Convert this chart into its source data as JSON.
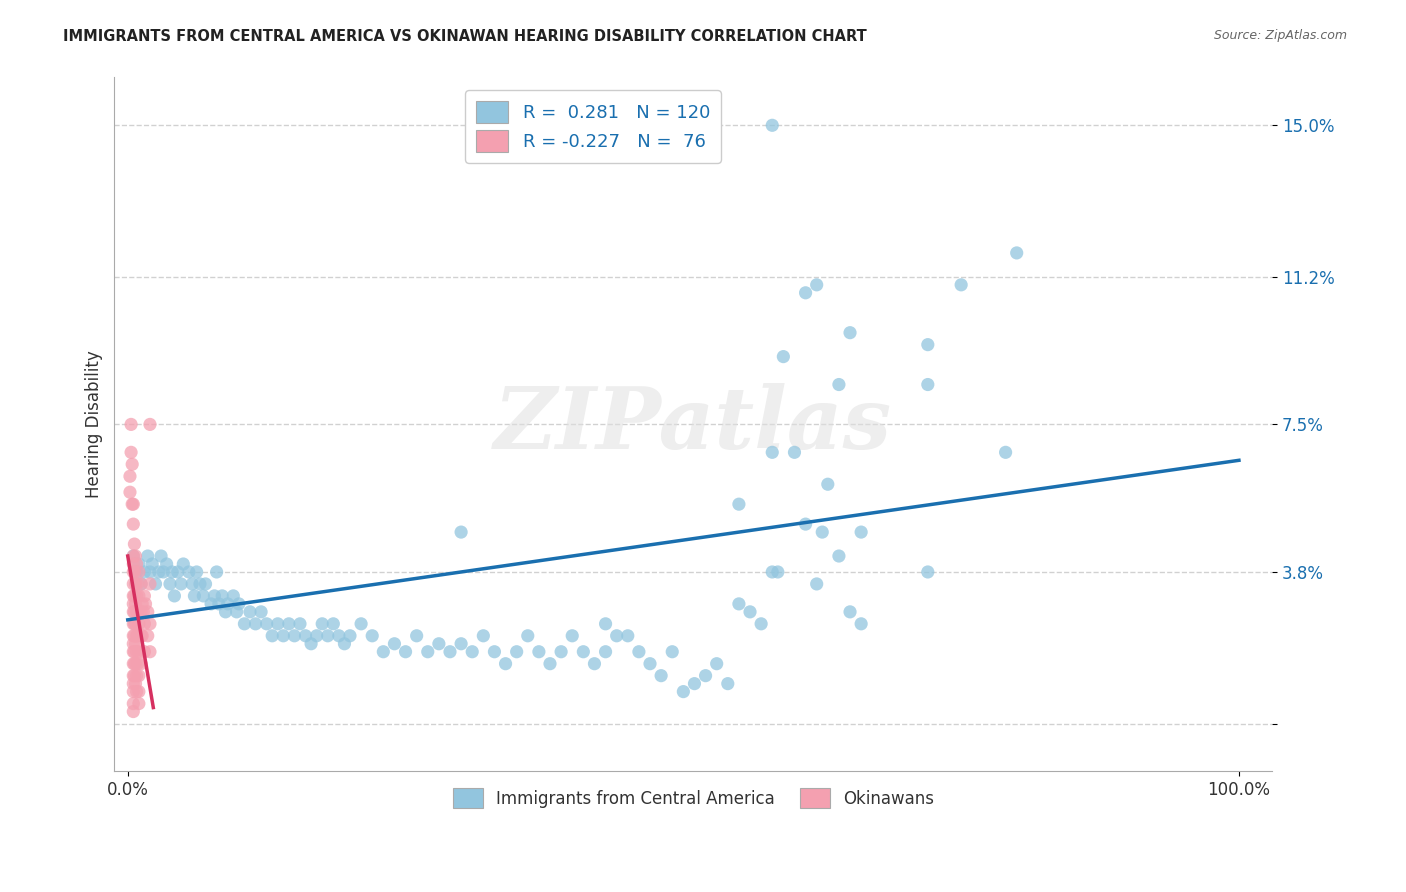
{
  "title": "IMMIGRANTS FROM CENTRAL AMERICA VS OKINAWAN HEARING DISABILITY CORRELATION CHART",
  "source": "Source: ZipAtlas.com",
  "ylabel": "Hearing Disability",
  "xlim_min": -0.012,
  "xlim_max": 1.03,
  "ylim_min": -0.012,
  "ylim_max": 0.162,
  "ytick_vals": [
    0.0,
    0.038,
    0.075,
    0.112,
    0.15
  ],
  "ytick_labels": [
    "",
    "3.8%",
    "7.5%",
    "11.2%",
    "15.0%"
  ],
  "xtick_vals": [
    0.0,
    1.0
  ],
  "xtick_labels": [
    "0.0%",
    "100.0%"
  ],
  "blue_R": "0.281",
  "blue_N": "120",
  "pink_R": "-0.227",
  "pink_N": "76",
  "blue_scatter_color": "#92c5de",
  "blue_line_color": "#1a6faf",
  "pink_scatter_color": "#f4a0b0",
  "pink_line_color": "#d63060",
  "legend_label_blue": "Immigrants from Central America",
  "legend_label_pink": "Okinawans",
  "watermark": "ZIPatlas",
  "background_color": "#ffffff",
  "blue_line": [
    0.0,
    1.0,
    0.026,
    0.066
  ],
  "pink_line": [
    0.0,
    0.023,
    0.042,
    0.004
  ],
  "blue_points_x": [
    0.005,
    0.008,
    0.01,
    0.012,
    0.015,
    0.018,
    0.02,
    0.022,
    0.025,
    0.028,
    0.03,
    0.032,
    0.035,
    0.038,
    0.04,
    0.042,
    0.045,
    0.048,
    0.05,
    0.055,
    0.058,
    0.06,
    0.062,
    0.065,
    0.068,
    0.07,
    0.075,
    0.078,
    0.08,
    0.082,
    0.085,
    0.088,
    0.09,
    0.095,
    0.098,
    0.1,
    0.105,
    0.11,
    0.115,
    0.12,
    0.125,
    0.13,
    0.135,
    0.14,
    0.145,
    0.15,
    0.155,
    0.16,
    0.165,
    0.17,
    0.175,
    0.18,
    0.185,
    0.19,
    0.195,
    0.2,
    0.21,
    0.22,
    0.23,
    0.24,
    0.25,
    0.26,
    0.27,
    0.28,
    0.29,
    0.3,
    0.31,
    0.32,
    0.33,
    0.34,
    0.35,
    0.36,
    0.37,
    0.38,
    0.39,
    0.4,
    0.41,
    0.42,
    0.43,
    0.44,
    0.45,
    0.46,
    0.47,
    0.48,
    0.49,
    0.5,
    0.51,
    0.52,
    0.53,
    0.54,
    0.55,
    0.56,
    0.57,
    0.58,
    0.585,
    0.6,
    0.61,
    0.62,
    0.625,
    0.63,
    0.64,
    0.65,
    0.66,
    0.58,
    0.55,
    0.3,
    0.62,
    0.66,
    0.72,
    0.75,
    0.58,
    0.72,
    0.8,
    0.65,
    0.59,
    0.64,
    0.61,
    0.43,
    0.72,
    0.79
  ],
  "blue_points_y": [
    0.042,
    0.038,
    0.04,
    0.035,
    0.038,
    0.042,
    0.038,
    0.04,
    0.035,
    0.038,
    0.042,
    0.038,
    0.04,
    0.035,
    0.038,
    0.032,
    0.038,
    0.035,
    0.04,
    0.038,
    0.035,
    0.032,
    0.038,
    0.035,
    0.032,
    0.035,
    0.03,
    0.032,
    0.038,
    0.03,
    0.032,
    0.028,
    0.03,
    0.032,
    0.028,
    0.03,
    0.025,
    0.028,
    0.025,
    0.028,
    0.025,
    0.022,
    0.025,
    0.022,
    0.025,
    0.022,
    0.025,
    0.022,
    0.02,
    0.022,
    0.025,
    0.022,
    0.025,
    0.022,
    0.02,
    0.022,
    0.025,
    0.022,
    0.018,
    0.02,
    0.018,
    0.022,
    0.018,
    0.02,
    0.018,
    0.02,
    0.018,
    0.022,
    0.018,
    0.015,
    0.018,
    0.022,
    0.018,
    0.015,
    0.018,
    0.022,
    0.018,
    0.015,
    0.018,
    0.022,
    0.022,
    0.018,
    0.015,
    0.012,
    0.018,
    0.008,
    0.01,
    0.012,
    0.015,
    0.01,
    0.03,
    0.028,
    0.025,
    0.038,
    0.038,
    0.068,
    0.05,
    0.035,
    0.048,
    0.06,
    0.085,
    0.098,
    0.048,
    0.068,
    0.055,
    0.048,
    0.11,
    0.025,
    0.085,
    0.11,
    0.15,
    0.038,
    0.118,
    0.028,
    0.092,
    0.042,
    0.108,
    0.025,
    0.095,
    0.068
  ],
  "pink_points_x": [
    0.003,
    0.004,
    0.005,
    0.005,
    0.005,
    0.005,
    0.005,
    0.005,
    0.005,
    0.005,
    0.005,
    0.005,
    0.005,
    0.005,
    0.005,
    0.005,
    0.005,
    0.005,
    0.005,
    0.005,
    0.005,
    0.006,
    0.006,
    0.006,
    0.006,
    0.006,
    0.006,
    0.006,
    0.006,
    0.006,
    0.007,
    0.007,
    0.007,
    0.007,
    0.007,
    0.007,
    0.007,
    0.008,
    0.008,
    0.008,
    0.008,
    0.008,
    0.008,
    0.008,
    0.009,
    0.009,
    0.009,
    0.009,
    0.01,
    0.01,
    0.01,
    0.01,
    0.01,
    0.01,
    0.01,
    0.012,
    0.012,
    0.012,
    0.012,
    0.013,
    0.013,
    0.014,
    0.015,
    0.015,
    0.015,
    0.016,
    0.018,
    0.018,
    0.02,
    0.02,
    0.02,
    0.02,
    0.003,
    0.004,
    0.002,
    0.002
  ],
  "pink_points_y": [
    0.075,
    0.055,
    0.055,
    0.05,
    0.042,
    0.04,
    0.038,
    0.035,
    0.032,
    0.03,
    0.028,
    0.025,
    0.022,
    0.02,
    0.018,
    0.015,
    0.012,
    0.01,
    0.008,
    0.005,
    0.003,
    0.045,
    0.038,
    0.032,
    0.028,
    0.025,
    0.022,
    0.018,
    0.015,
    0.012,
    0.042,
    0.035,
    0.03,
    0.025,
    0.02,
    0.015,
    0.01,
    0.04,
    0.032,
    0.028,
    0.022,
    0.018,
    0.012,
    0.008,
    0.035,
    0.028,
    0.022,
    0.015,
    0.038,
    0.032,
    0.025,
    0.018,
    0.012,
    0.008,
    0.005,
    0.035,
    0.028,
    0.022,
    0.015,
    0.03,
    0.022,
    0.028,
    0.032,
    0.025,
    0.018,
    0.03,
    0.028,
    0.022,
    0.035,
    0.025,
    0.018,
    0.075,
    0.068,
    0.065,
    0.062,
    0.058
  ]
}
